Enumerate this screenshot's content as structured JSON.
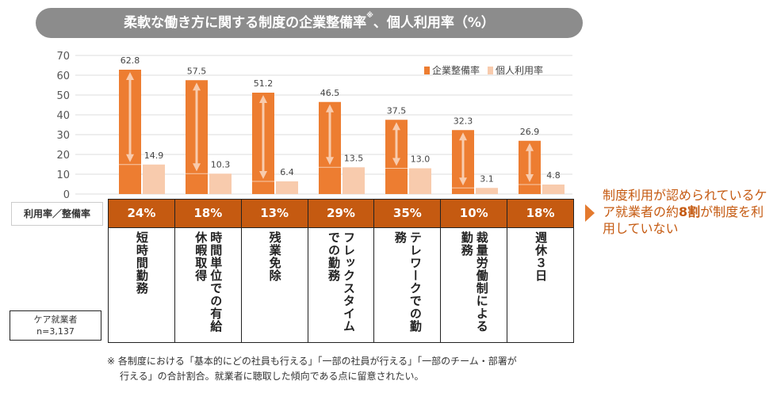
{
  "title": "柔軟な働き方に関する制度の企業整備率",
  "title_mark": "※",
  "title_suffix": "、個人利用率（%）",
  "colors": {
    "company": "#ed7d31",
    "personal": "#f8cbad",
    "ratio_row": "#c55a11",
    "title_bg": "#8c8c8c",
    "arrow": "#f8cbad"
  },
  "chart_data": {
    "type": "bar",
    "categories": [
      "短時間勤務",
      "時間単位での有給休暇取得",
      "残業免除",
      "フレックスタイムでの勤務",
      "テレワークでの勤務",
      "裁量労働制による勤務",
      "週休３日"
    ],
    "series": [
      {
        "name": "企業整備率",
        "values": [
          62.8,
          57.5,
          51.2,
          46.5,
          37.5,
          32.3,
          26.9
        ]
      },
      {
        "name": "個人利用率",
        "values": [
          14.9,
          10.3,
          6.4,
          13.5,
          13.0,
          3.1,
          4.8
        ]
      }
    ],
    "value_labels": [
      [
        "62.8",
        "57.5",
        "51.2",
        "46.5",
        "37.5",
        "32.3",
        "26.9"
      ],
      [
        "14.9",
        "10.3",
        "6.4",
        "13.5",
        "13.0",
        "3.1",
        "4.8"
      ]
    ],
    "ylim": [
      0,
      70
    ],
    "yticks": [
      "0",
      "10",
      "20",
      "30",
      "40",
      "50",
      "60",
      "70"
    ],
    "grid": true,
    "legend": "top-right"
  },
  "ratio": {
    "label": "利用率／整備率",
    "values": [
      "24%",
      "18%",
      "13%",
      "29%",
      "35%",
      "10%",
      "18%"
    ]
  },
  "sample": {
    "line1": "ケア就業者",
    "line2": "n=3,137"
  },
  "callout": {
    "pre": "制度利用が認められているケア就業者の約",
    "bold": "8割",
    "post": "が制度を利用していない"
  },
  "note": {
    "line1": "※ 各制度における「基本的にどの社員も行える」「一部の社員が行える」「一部のチーム・部署が",
    "line2": "行える」の合計割合。就業者に聴取した傾向である点に留意されたい。"
  }
}
